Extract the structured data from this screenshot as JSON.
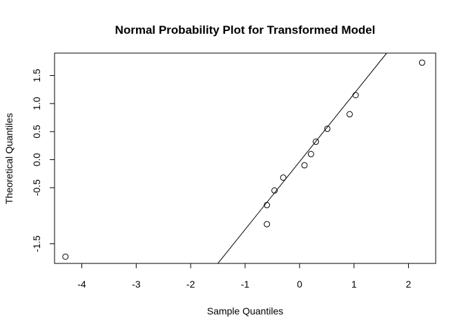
{
  "chart_data": {
    "type": "scatter",
    "title": "Normal Probability Plot for Transformed Model",
    "xlabel": "Sample Quantiles",
    "ylabel": "Theoretical Quantiles",
    "xlim": [
      -4.5,
      2.5
    ],
    "ylim": [
      -1.85,
      1.9
    ],
    "xticks": [
      -4,
      -3,
      -2,
      -1,
      0,
      1,
      2
    ],
    "xtick_labels": [
      "-4",
      "-3",
      "-2",
      "-1",
      "0",
      "1",
      "2"
    ],
    "yticks": [
      -1.5,
      -0.5,
      0.0,
      0.5,
      1.0,
      1.5
    ],
    "ytick_labels": [
      "-1.5",
      "-0.5",
      "0.0",
      "0.5",
      "1.0",
      "1.5"
    ],
    "marker": "open-circle",
    "grid": false,
    "points": [
      {
        "x": -4.3,
        "y": -1.73
      },
      {
        "x": -0.6,
        "y": -1.15
      },
      {
        "x": -0.6,
        "y": -0.81
      },
      {
        "x": -0.46,
        "y": -0.55
      },
      {
        "x": -0.3,
        "y": -0.32
      },
      {
        "x": 0.09,
        "y": -0.1
      },
      {
        "x": 0.21,
        "y": 0.1
      },
      {
        "x": 0.3,
        "y": 0.32
      },
      {
        "x": 0.51,
        "y": 0.55
      },
      {
        "x": 0.92,
        "y": 0.81
      },
      {
        "x": 1.03,
        "y": 1.15
      },
      {
        "x": 2.25,
        "y": 1.73
      }
    ],
    "reference_line": {
      "from": [
        -1.5,
        -1.85
      ],
      "to": [
        1.6,
        1.9
      ]
    }
  }
}
